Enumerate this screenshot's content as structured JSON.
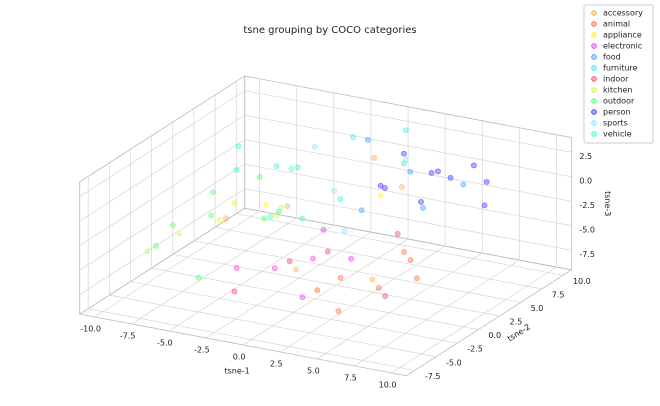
{
  "chart_data": {
    "type": "scatter3d",
    "title": "tsne grouping by COCO categories",
    "xlabel": "tsne-1",
    "ylabel": "tsne-2",
    "zlabel": "tsne-3",
    "xlim": [
      -11,
      11
    ],
    "ylim": [
      -8.5,
      11
    ],
    "zlim": [
      -9.5,
      4
    ],
    "xticks": [
      {
        "value": -10,
        "label": "-10.0"
      },
      -7.5,
      {
        "value": -5,
        "label": "-5.0"
      },
      -2.5,
      {
        "value": 0,
        "label": "0.0"
      },
      2.5,
      {
        "value": 5,
        "label": "5.0"
      },
      7.5,
      {
        "value": 10,
        "label": "10.0"
      }
    ],
    "yticks": [
      -7.5,
      {
        "value": -5,
        "label": "-5.0"
      },
      -2.5,
      {
        "value": 0,
        "label": "0.0"
      },
      2.5,
      {
        "value": 5,
        "label": "5.0"
      },
      7.5,
      {
        "value": 10,
        "label": "10.0"
      }
    ],
    "zticks": [
      -7.5,
      {
        "value": -5,
        "label": "-5.0"
      },
      -2.5,
      {
        "value": 0,
        "label": "0.0"
      },
      2.5
    ],
    "grid": true,
    "legend": "upper right",
    "series": [
      {
        "name": "accessory",
        "color": "#ff9933",
        "x": [
          -3,
          1,
          3,
          -6,
          5,
          0
        ],
        "y": [
          2,
          -4,
          5,
          0,
          -2,
          7
        ],
        "z": [
          -2,
          -4,
          0,
          -3,
          -5,
          1
        ]
      },
      {
        "name": "animal",
        "color": "#ff4d1a",
        "x": [
          4,
          6,
          7,
          5,
          3,
          8,
          6
        ],
        "y": [
          -4,
          -3,
          -1,
          -6,
          -5,
          -2,
          0
        ],
        "z": [
          -4,
          -5,
          -3,
          -6,
          -5,
          -4,
          -3
        ]
      },
      {
        "name": "appliance",
        "color": "#ffee00",
        "x": [
          -5,
          -2,
          1,
          -7
        ],
        "y": [
          3,
          -1,
          6,
          1
        ],
        "z": [
          -3,
          -1,
          -2,
          -4
        ]
      },
      {
        "name": "electronic",
        "color": "#e61ae6",
        "x": [
          -1,
          1,
          2,
          0,
          -3,
          3
        ],
        "y": [
          -3,
          -2,
          -5,
          1,
          -4,
          -1
        ],
        "z": [
          -5,
          -4,
          -6,
          -3,
          -5,
          -4
        ]
      },
      {
        "name": "food",
        "color": "#1a8cff",
        "x": [
          3,
          5,
          -1,
          6,
          2
        ],
        "y": [
          6,
          4,
          8,
          7,
          2
        ],
        "z": [
          1,
          -1,
          2,
          0,
          -1
        ]
      },
      {
        "name": "furniture",
        "color": "#1ae6e6",
        "x": [
          -4,
          -2,
          0,
          -6,
          1,
          -3,
          2
        ],
        "y": [
          5,
          8,
          3,
          6,
          9,
          1,
          7
        ],
        "z": [
          0,
          2,
          -1,
          -1,
          3,
          -2,
          1
        ]
      },
      {
        "name": "indoor",
        "color": "#ff1a4d",
        "x": [
          2,
          -2,
          5,
          0,
          7
        ],
        "y": [
          -2,
          -6,
          1,
          -3,
          -4
        ],
        "z": [
          -3,
          -6,
          -2,
          -4,
          -5
        ]
      },
      {
        "name": "kitchen",
        "color": "#bfff1a",
        "x": [
          -8,
          -6,
          -9,
          -4
        ],
        "y": [
          -2,
          1,
          -4,
          3
        ],
        "z": [
          -4,
          -2,
          -5,
          -3
        ]
      },
      {
        "name": "outdoor",
        "color": "#33ff4d",
        "x": [
          -9,
          -7,
          -8,
          -5,
          -6,
          -9,
          -4
        ],
        "y": [
          -3,
          0,
          2,
          -5,
          4,
          -1,
          1
        ],
        "z": [
          -5,
          -3,
          -2,
          -6,
          -1,
          -4,
          -3
        ]
      },
      {
        "name": "person",
        "color": "#0d0dff",
        "x": [
          3,
          5,
          7,
          4,
          6,
          8,
          2,
          6,
          5,
          1
        ],
        "y": [
          3,
          5,
          8,
          9,
          2,
          6,
          7,
          4,
          10,
          6
        ],
        "z": [
          1,
          2,
          0,
          -1,
          1,
          -1,
          2,
          3,
          0,
          -1
        ]
      },
      {
        "name": "sports",
        "color": "#66e6ff",
        "x": [
          -1,
          2,
          -4,
          1
        ],
        "y": [
          4,
          0,
          7,
          9
        ],
        "z": [
          -1,
          -2,
          1,
          0
        ]
      },
      {
        "name": "vehicle",
        "color": "#1affb3",
        "x": [
          -7,
          -5,
          -3,
          -8,
          -2
        ],
        "y": [
          3,
          6,
          0,
          5,
          2
        ],
        "z": [
          0,
          -1,
          -2,
          1,
          -3
        ]
      }
    ]
  }
}
